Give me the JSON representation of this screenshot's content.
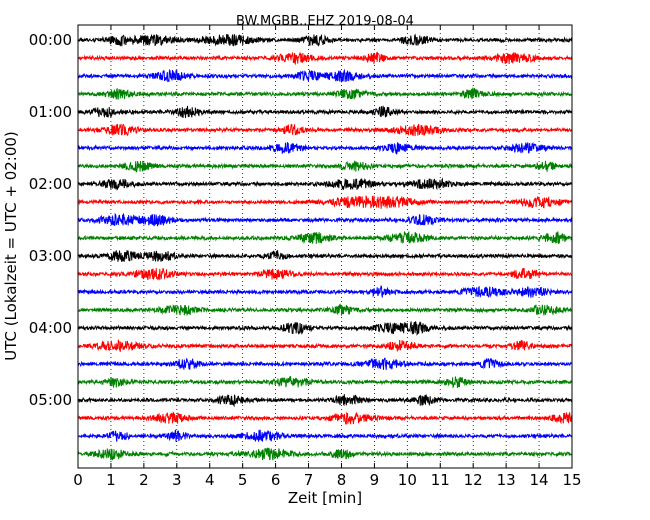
{
  "chart_data": {
    "type": "line",
    "title": "BW.MGBB..EHZ 2019-08-04",
    "xlabel": "Zeit  [min]",
    "ylabel": "UTC (Lokalzeit = UTC + 02:00)",
    "xlim": [
      0,
      15
    ],
    "x_ticks": [
      "0",
      "1",
      "2",
      "3",
      "4",
      "5",
      "6",
      "7",
      "8",
      "9",
      "10",
      "11",
      "12",
      "13",
      "14",
      "15"
    ],
    "y_tick_labels": [
      "00:00",
      "01:00",
      "02:00",
      "03:00",
      "04:00",
      "05:00"
    ],
    "y_tick_rows": [
      0,
      4,
      8,
      12,
      16,
      20
    ],
    "grid": "x-dotted",
    "trace_colors": [
      "#000000",
      "#ff0000",
      "#0000ff",
      "#008000"
    ],
    "series": [
      {
        "start": "00:00",
        "color": "#000000",
        "bursts": [
          [
            2.3,
            0.6
          ],
          [
            4.6,
            0.8
          ],
          [
            1.3,
            0.4
          ],
          [
            7.2,
            0.4
          ],
          [
            10.2,
            0.4
          ]
        ]
      },
      {
        "start": "00:15",
        "color": "#ff0000",
        "bursts": [
          [
            6.6,
            0.5
          ],
          [
            13.2,
            0.6
          ],
          [
            9.0,
            0.3
          ]
        ]
      },
      {
        "start": "00:30",
        "color": "#0000ff",
        "bursts": [
          [
            2.8,
            0.5
          ],
          [
            8.1,
            0.5
          ],
          [
            7.0,
            0.4
          ]
        ]
      },
      {
        "start": "00:45",
        "color": "#008000",
        "bursts": [
          [
            1.2,
            0.4
          ],
          [
            8.3,
            0.4
          ],
          [
            12.0,
            0.3
          ]
        ]
      },
      {
        "start": "01:00",
        "color": "#000000",
        "bursts": [
          [
            0.8,
            0.4
          ],
          [
            3.3,
            0.4
          ],
          [
            9.3,
            0.3
          ]
        ]
      },
      {
        "start": "01:15",
        "color": "#ff0000",
        "bursts": [
          [
            1.3,
            0.5
          ],
          [
            10.3,
            0.7
          ],
          [
            6.5,
            0.3
          ]
        ]
      },
      {
        "start": "01:30",
        "color": "#0000ff",
        "bursts": [
          [
            6.3,
            0.4
          ],
          [
            13.6,
            0.5
          ],
          [
            9.7,
            0.4
          ]
        ]
      },
      {
        "start": "01:45",
        "color": "#008000",
        "bursts": [
          [
            1.8,
            0.4
          ],
          [
            8.4,
            0.4
          ],
          [
            14.2,
            0.3
          ]
        ]
      },
      {
        "start": "02:00",
        "color": "#000000",
        "bursts": [
          [
            8.3,
            0.6
          ],
          [
            10.7,
            0.6
          ],
          [
            1.2,
            0.4
          ]
        ]
      },
      {
        "start": "02:15",
        "color": "#ff0000",
        "bursts": [
          [
            8.4,
            0.7
          ],
          [
            9.5,
            0.7
          ],
          [
            14.0,
            0.6
          ]
        ]
      },
      {
        "start": "02:30",
        "color": "#0000ff",
        "bursts": [
          [
            1.2,
            0.6
          ],
          [
            2.4,
            0.5
          ],
          [
            10.5,
            0.4
          ]
        ]
      },
      {
        "start": "02:45",
        "color": "#008000",
        "bursts": [
          [
            7.2,
            0.5
          ],
          [
            10.0,
            0.6
          ],
          [
            14.5,
            0.4
          ]
        ]
      },
      {
        "start": "03:00",
        "color": "#000000",
        "bursts": [
          [
            1.4,
            0.5
          ],
          [
            2.5,
            0.4
          ],
          [
            6.0,
            0.3
          ]
        ]
      },
      {
        "start": "03:15",
        "color": "#ff0000",
        "bursts": [
          [
            2.3,
            0.6
          ],
          [
            6.0,
            0.4
          ],
          [
            13.6,
            0.4
          ]
        ]
      },
      {
        "start": "03:30",
        "color": "#0000ff",
        "bursts": [
          [
            12.3,
            0.6
          ],
          [
            13.8,
            0.5
          ],
          [
            9.2,
            0.3
          ]
        ]
      },
      {
        "start": "03:45",
        "color": "#008000",
        "bursts": [
          [
            3.1,
            0.5
          ],
          [
            14.2,
            0.4
          ],
          [
            8.0,
            0.3
          ]
        ]
      },
      {
        "start": "04:00",
        "color": "#000000",
        "bursts": [
          [
            6.6,
            0.4
          ],
          [
            9.5,
            0.5
          ],
          [
            10.3,
            0.4
          ]
        ]
      },
      {
        "start": "04:15",
        "color": "#ff0000",
        "bursts": [
          [
            1.2,
            0.6
          ],
          [
            9.8,
            0.4
          ],
          [
            13.5,
            0.3
          ]
        ]
      },
      {
        "start": "04:30",
        "color": "#0000ff",
        "bursts": [
          [
            3.3,
            0.4
          ],
          [
            9.3,
            0.6
          ],
          [
            12.5,
            0.3
          ]
        ]
      },
      {
        "start": "04:45",
        "color": "#008000",
        "bursts": [
          [
            6.5,
            0.5
          ],
          [
            1.2,
            0.3
          ],
          [
            11.5,
            0.3
          ]
        ]
      },
      {
        "start": "05:00",
        "color": "#000000",
        "bursts": [
          [
            4.6,
            0.4
          ],
          [
            8.2,
            0.4
          ],
          [
            10.5,
            0.3
          ]
        ]
      },
      {
        "start": "05:15",
        "color": "#ff0000",
        "bursts": [
          [
            2.8,
            0.5
          ],
          [
            8.3,
            0.6
          ],
          [
            14.8,
            0.4
          ]
        ]
      },
      {
        "start": "05:30",
        "color": "#0000ff",
        "bursts": [
          [
            5.6,
            0.6
          ],
          [
            1.2,
            0.3
          ],
          [
            3.0,
            0.3
          ]
        ]
      },
      {
        "start": "05:45",
        "color": "#008000",
        "bursts": [
          [
            5.8,
            0.7
          ],
          [
            1.0,
            0.5
          ],
          [
            8.0,
            0.3
          ]
        ]
      }
    ]
  }
}
